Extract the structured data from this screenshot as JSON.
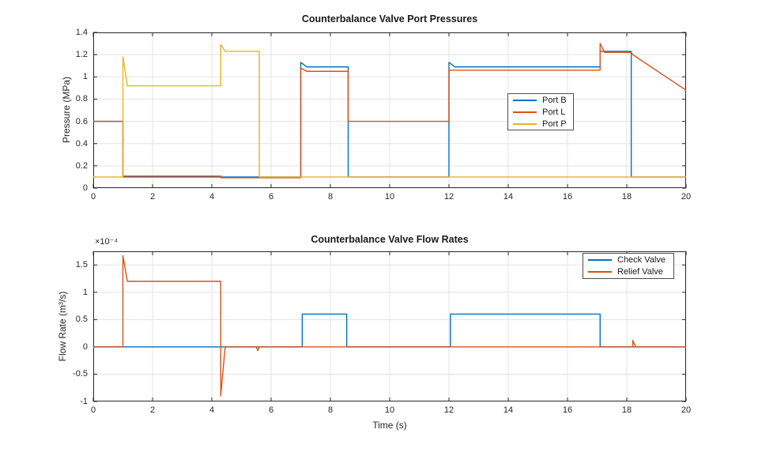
{
  "chart_data": [
    {
      "type": "line",
      "title": "Counterbalance Valve Port Pressures",
      "xlabel": "",
      "ylabel": "Pressure (MPa)",
      "xlim": [
        0,
        20
      ],
      "ylim": [
        0,
        1.4
      ],
      "xticks": [
        0,
        2,
        4,
        6,
        8,
        10,
        12,
        14,
        16,
        18,
        20
      ],
      "xtick_labels": [
        "0",
        "2",
        "4",
        "6",
        "8",
        "10",
        "12",
        "14",
        "16",
        "18",
        "20"
      ],
      "yticks": [
        0,
        0.2,
        0.4,
        0.6,
        0.8,
        1,
        1.2,
        1.4
      ],
      "ytick_labels": [
        "0",
        "0.2",
        "0.4",
        "0.6",
        "0.8",
        "1",
        "1.2",
        "1.4"
      ],
      "grid": true,
      "legend_position": "inside-middle-right",
      "series": [
        {
          "name": "Port B",
          "color": "#0072BD",
          "points": [
            [
              0,
              0.6
            ],
            [
              1,
              0.6
            ],
            [
              1,
              0.1
            ],
            [
              7,
              0.1
            ],
            [
              7,
              1.13
            ],
            [
              7.2,
              1.09
            ],
            [
              8.6,
              1.09
            ],
            [
              8.6,
              0.1
            ],
            [
              12,
              0.1
            ],
            [
              12,
              1.13
            ],
            [
              12.2,
              1.09
            ],
            [
              17.1,
              1.09
            ],
            [
              17.1,
              1.23
            ],
            [
              18.15,
              1.23
            ],
            [
              18.15,
              0.1
            ],
            [
              20,
              0.1
            ]
          ]
        },
        {
          "name": "Port L",
          "color": "#D95319",
          "points": [
            [
              0,
              0.6
            ],
            [
              1,
              0.6
            ],
            [
              1,
              0.108
            ],
            [
              4.3,
              0.108
            ],
            [
              4.3,
              0.093
            ],
            [
              7,
              0.093
            ],
            [
              7,
              1.08
            ],
            [
              7.2,
              1.05
            ],
            [
              8.6,
              1.05
            ],
            [
              8.6,
              0.6
            ],
            [
              12,
              0.6
            ],
            [
              12,
              1.06
            ],
            [
              17.1,
              1.06
            ],
            [
              17.1,
              1.3
            ],
            [
              17.25,
              1.22
            ],
            [
              18.15,
              1.22
            ],
            [
              18.2,
              1.2
            ],
            [
              20,
              0.88
            ]
          ]
        },
        {
          "name": "Port P",
          "color": "#EDB120",
          "points": [
            [
              0,
              0.1
            ],
            [
              1,
              0.1
            ],
            [
              1,
              1.18
            ],
            [
              1.15,
              0.92
            ],
            [
              4.3,
              0.92
            ],
            [
              4.3,
              1.29
            ],
            [
              4.45,
              1.23
            ],
            [
              5.6,
              1.23
            ],
            [
              5.6,
              0.1
            ],
            [
              20,
              0.1
            ]
          ]
        }
      ]
    },
    {
      "type": "line",
      "title": "Counterbalance Valve Flow Rates",
      "xlabel": "Time (s)",
      "ylabel": "Flow Rate (m³/s)",
      "y_multiplier_label": "×10⁻⁴",
      "units_note": "y values are in units of 1e-4 m^3/s",
      "xlim": [
        0,
        20
      ],
      "ylim": [
        -1,
        1.75
      ],
      "xticks": [
        0,
        2,
        4,
        6,
        8,
        10,
        12,
        14,
        16,
        18,
        20
      ],
      "xtick_labels": [
        "0",
        "2",
        "4",
        "6",
        "8",
        "10",
        "12",
        "14",
        "16",
        "18",
        "20"
      ],
      "yticks": [
        -1,
        -0.5,
        0,
        0.5,
        1,
        1.5
      ],
      "ytick_labels": [
        "-1",
        "-0.5",
        "0",
        "0.5",
        "1",
        "1.5"
      ],
      "grid": true,
      "legend_position": "inside-top-right",
      "series": [
        {
          "name": "Check Valve",
          "color": "#0072BD",
          "points": [
            [
              0,
              0
            ],
            [
              7.05,
              0
            ],
            [
              7.05,
              0.6
            ],
            [
              8.55,
              0.6
            ],
            [
              8.55,
              0
            ],
            [
              12.05,
              0
            ],
            [
              12.05,
              0.6
            ],
            [
              17.1,
              0.6
            ],
            [
              17.1,
              0
            ],
            [
              20,
              0
            ]
          ]
        },
        {
          "name": "Relief Valve",
          "color": "#D95319",
          "points": [
            [
              0,
              0
            ],
            [
              1,
              0
            ],
            [
              1,
              1.67
            ],
            [
              1.15,
              1.2
            ],
            [
              4.3,
              1.2
            ],
            [
              4.3,
              -0.9
            ],
            [
              4.45,
              0
            ],
            [
              5.5,
              0
            ],
            [
              5.55,
              -0.07
            ],
            [
              5.6,
              0
            ],
            [
              18.2,
              0
            ],
            [
              18.2,
              0.12
            ],
            [
              18.3,
              0
            ],
            [
              20,
              0
            ]
          ]
        }
      ]
    }
  ]
}
